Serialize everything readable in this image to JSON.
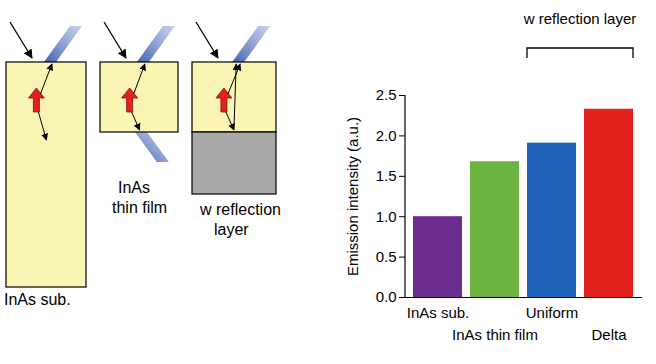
{
  "chart_data": {
    "type": "bar",
    "categories": [
      "InAs sub.",
      "InAs thin film",
      "Uniform",
      "Delta"
    ],
    "values": [
      1.0,
      1.68,
      1.91,
      2.33
    ],
    "colors": [
      "#6a2c8e",
      "#6cb33f",
      "#1f63b8",
      "#e3211c"
    ],
    "ylim": [
      0,
      2.5
    ],
    "yticks": [
      {
        "value": 0,
        "label": "0.0"
      },
      {
        "value": 0.5,
        "label": "0.5"
      },
      {
        "value": 1,
        "label": "1.0"
      },
      {
        "value": 1.5,
        "label": "1.5"
      },
      {
        "value": 2,
        "label": "2.0"
      },
      {
        "value": 2.5,
        "label": "2.5"
      }
    ],
    "y_label": "Emission intensity (a.u.)",
    "grid": false,
    "annotations": [
      {
        "text": "w reflection layer",
        "categories": [
          "Uniform",
          "Delta"
        ]
      }
    ]
  },
  "diagram": {
    "panels": [
      {
        "lines": [
          "InAs sub."
        ]
      },
      {
        "lines": [
          "InAs",
          "thin film"
        ]
      },
      {
        "lines": [
          "w reflection",
          "layer"
        ]
      }
    ]
  }
}
